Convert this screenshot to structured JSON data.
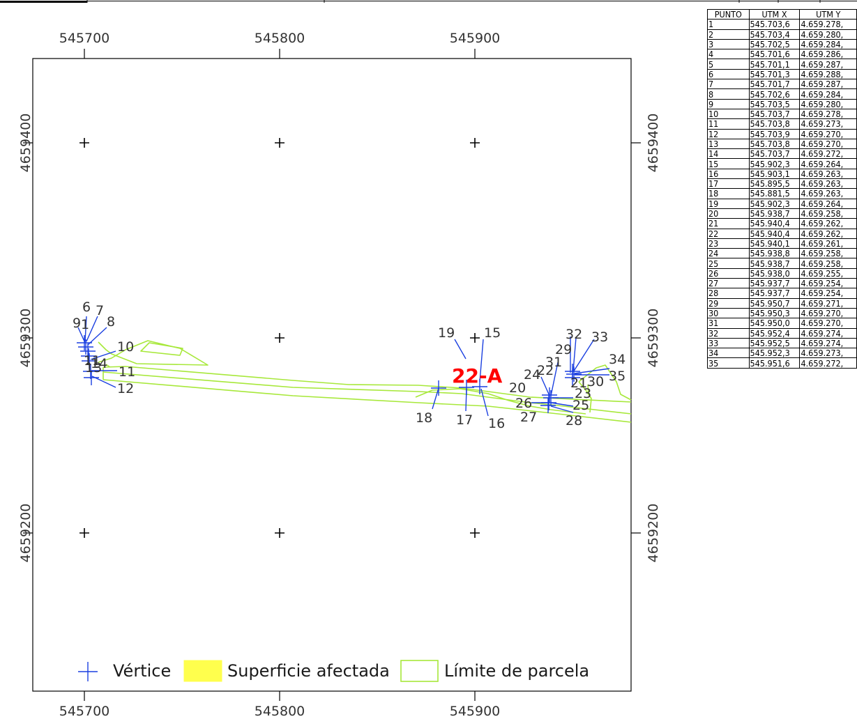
{
  "map": {
    "parcel_label": "22-A",
    "x_ticks": [
      "545700",
      "545800",
      "545900"
    ],
    "y_ticks": [
      "4659400",
      "4659300",
      "4659200"
    ],
    "vertex_labels": [
      "6",
      "7",
      "8",
      "9",
      "1",
      "10",
      "11",
      "13",
      "14",
      "11",
      "12",
      "19",
      "15",
      "22-A",
      "18",
      "17",
      "16",
      "32",
      "33",
      "29",
      "34",
      "31",
      "24",
      "22",
      "21",
      "30",
      "35",
      "20",
      "23",
      "26",
      "25",
      "27",
      "28"
    ],
    "legend": {
      "vertex": "Vértice",
      "affected": "Superficie afectada",
      "boundary": "Límite de parcela"
    },
    "colors": {
      "vertex": "#1a3fe0",
      "affected": "#ffff4d",
      "boundary": "#a7e83a",
      "label": "#ff0000"
    }
  },
  "table": {
    "headers": [
      "PUNTO",
      "UTM X",
      "UTM Y"
    ],
    "rows": [
      [
        "1",
        "545.703,6",
        "4.659.278,"
      ],
      [
        "2",
        "545.703,4",
        "4.659.280,"
      ],
      [
        "3",
        "545.702,5",
        "4.659.284,"
      ],
      [
        "4",
        "545.701,6",
        "4.659.286,"
      ],
      [
        "5",
        "545.701,1",
        "4.659.287,"
      ],
      [
        "6",
        "545.701,3",
        "4.659.288,"
      ],
      [
        "7",
        "545.701,7",
        "4.659.287,"
      ],
      [
        "8",
        "545.702,6",
        "4.659.284,"
      ],
      [
        "9",
        "545.703,5",
        "4.659.280,"
      ],
      [
        "10",
        "545.703,7",
        "4.659.278,"
      ],
      [
        "11",
        "545.703,8",
        "4.659.273,"
      ],
      [
        "12",
        "545.703,9",
        "4.659.270,"
      ],
      [
        "13",
        "545.703,8",
        "4.659.270,"
      ],
      [
        "14",
        "545.703,7",
        "4.659.272,"
      ],
      [
        "15",
        "545.902,3",
        "4.659.264,"
      ],
      [
        "16",
        "545.903,1",
        "4.659.263,"
      ],
      [
        "17",
        "545.895,5",
        "4.659.263,"
      ],
      [
        "18",
        "545.881,5",
        "4.659.263,"
      ],
      [
        "19",
        "545.902,3",
        "4.659.264,"
      ],
      [
        "20",
        "545.938,7",
        "4.659.258,"
      ],
      [
        "21",
        "545.940,4",
        "4.659.262,"
      ],
      [
        "22",
        "545.940,4",
        "4.659.262,"
      ],
      [
        "23",
        "545.940,1",
        "4.659.261,"
      ],
      [
        "24",
        "545.938,8",
        "4.659.258,"
      ],
      [
        "25",
        "545.938,7",
        "4.659.258,"
      ],
      [
        "26",
        "545.938,0",
        "4.659.255,"
      ],
      [
        "27",
        "545.937,7",
        "4.659.254,"
      ],
      [
        "28",
        "545.937,7",
        "4.659.254,"
      ],
      [
        "29",
        "545.950,7",
        "4.659.271,"
      ],
      [
        "30",
        "545.950,3",
        "4.659.270,"
      ],
      [
        "31",
        "545.950,0",
        "4.659.270,"
      ],
      [
        "32",
        "545.952,4",
        "4.659.274,"
      ],
      [
        "33",
        "545.952,5",
        "4.659.274,"
      ],
      [
        "34",
        "545.952,3",
        "4.659.273,"
      ],
      [
        "35",
        "545.951,6",
        "4.659.272,"
      ]
    ]
  }
}
